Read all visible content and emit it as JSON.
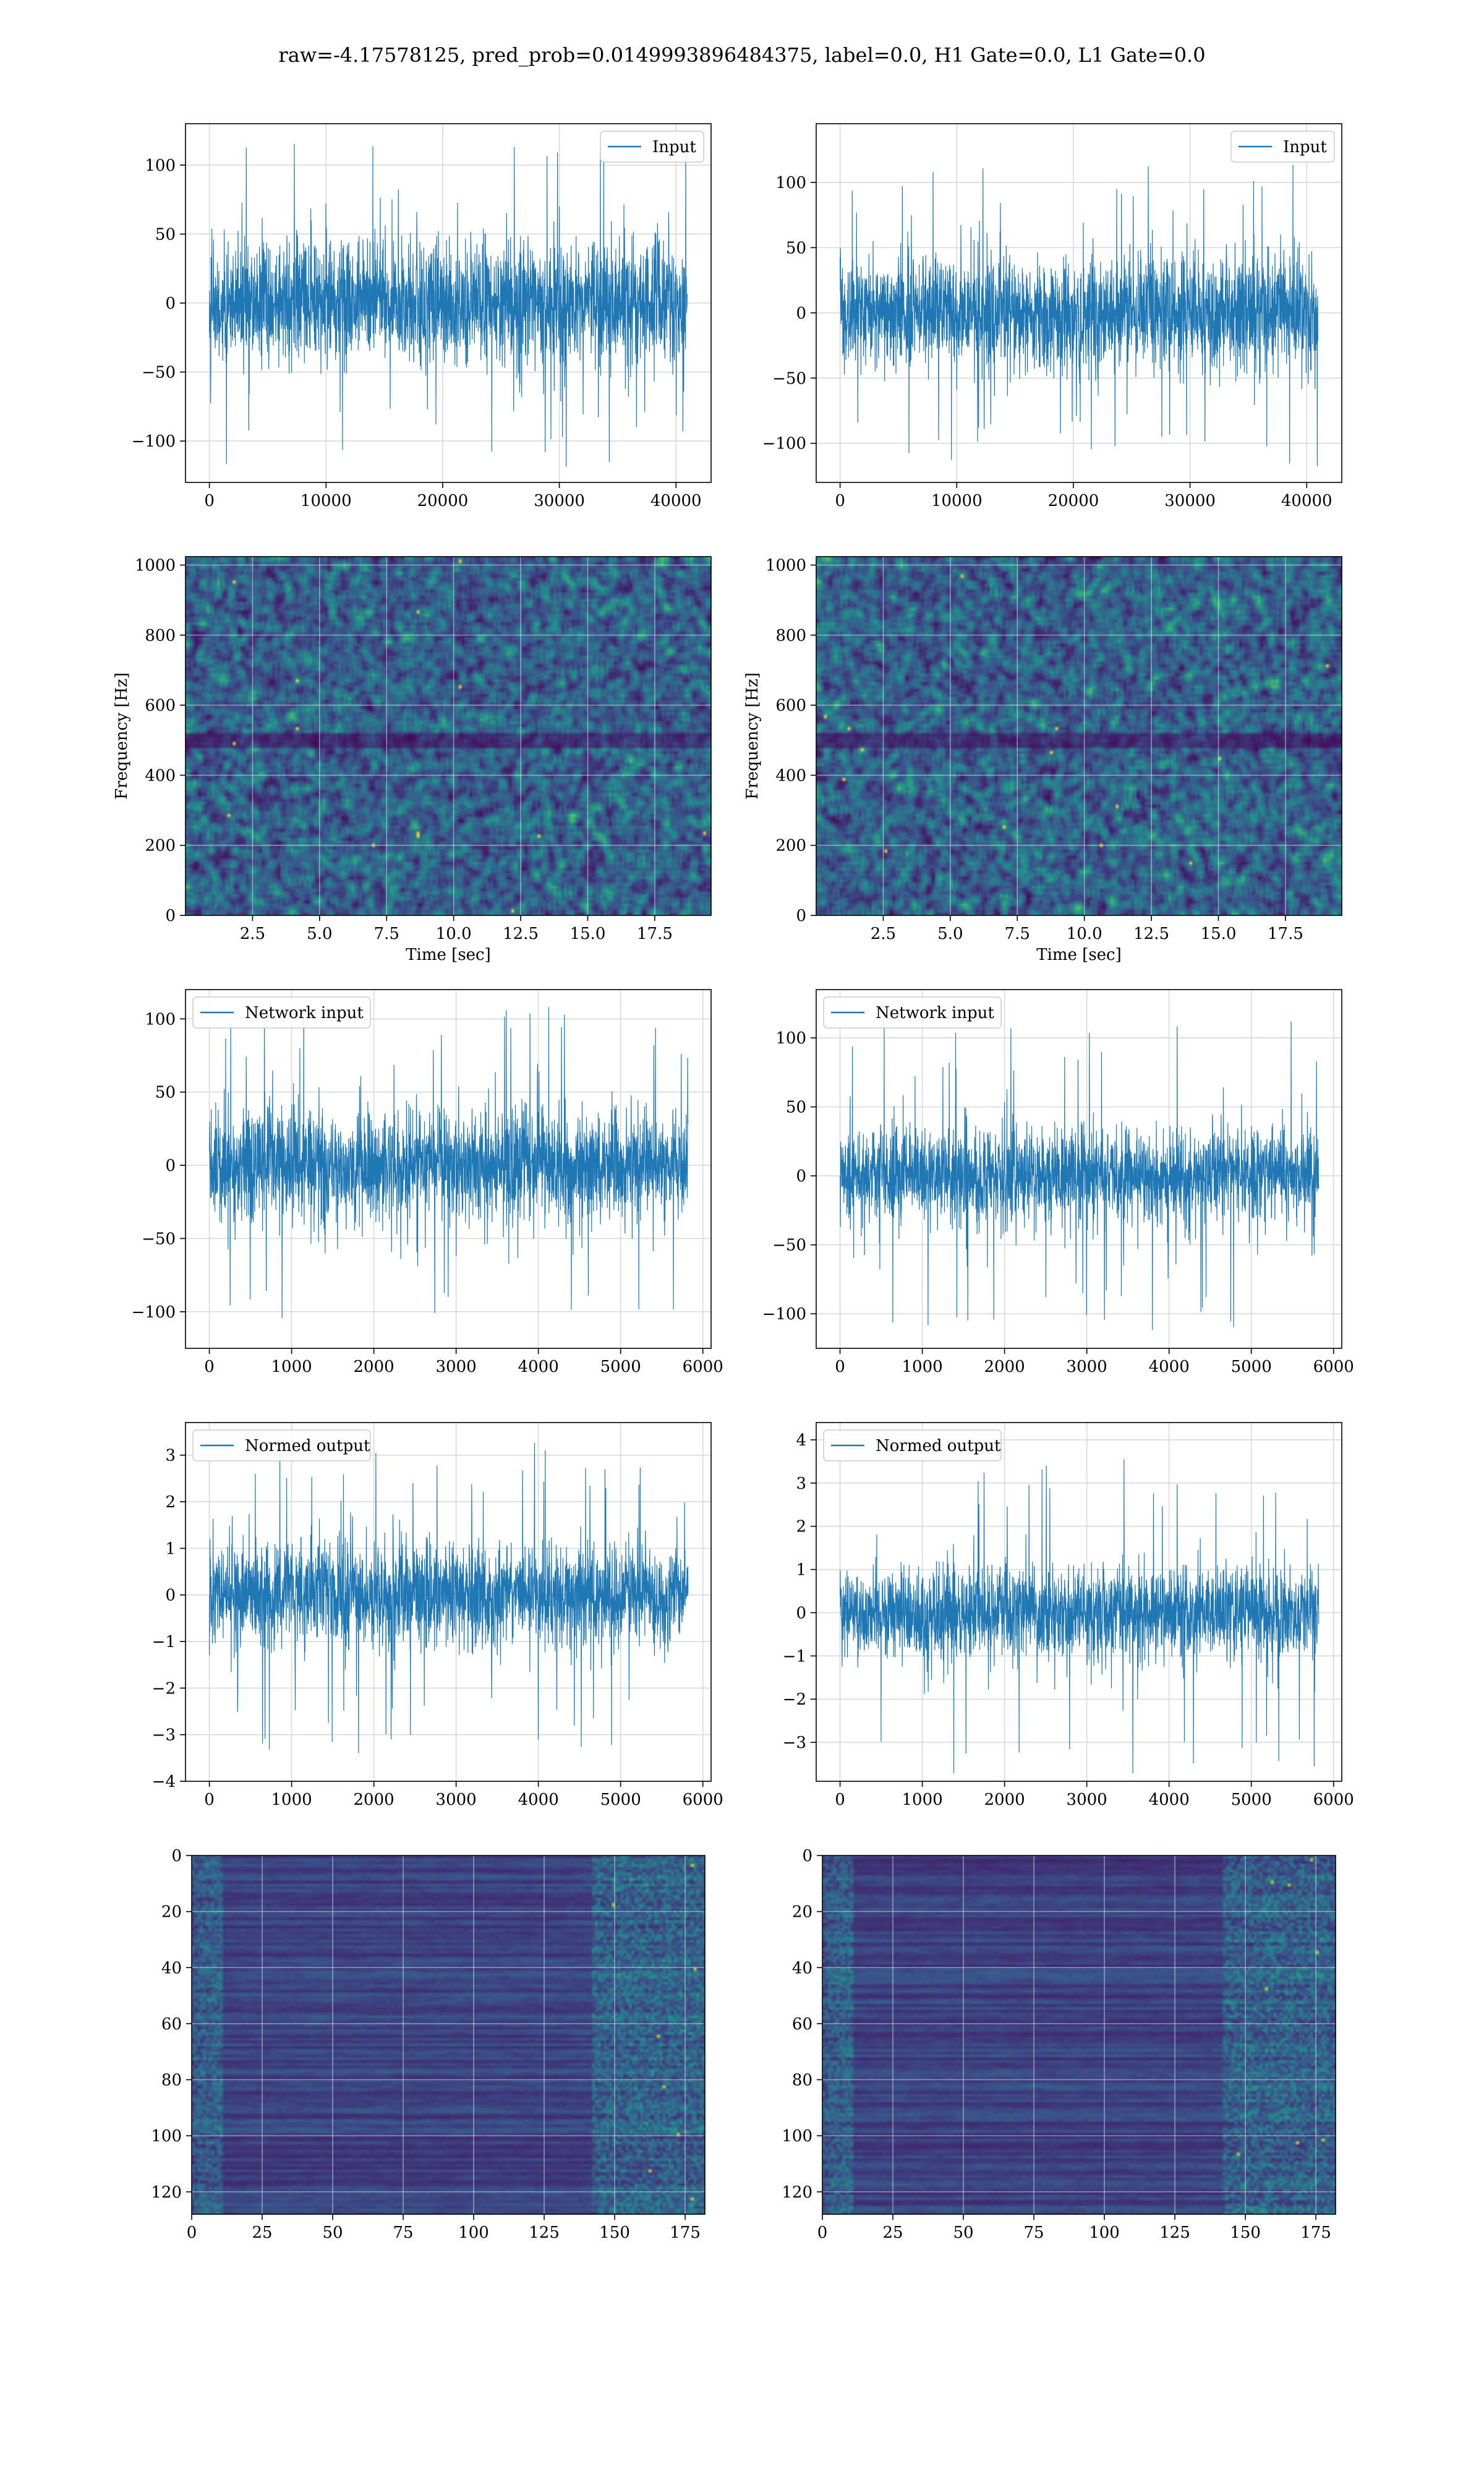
{
  "title": "raw=-4.17578125, pred_prob=0.0149993896484375, label=0.0, H1 Gate=0.0, L1 Gate=0.0",
  "colors": {
    "line": "#1f77b4",
    "grid": "#d9d9d9",
    "viridis": [
      "#440154",
      "#3b528b",
      "#21918c",
      "#5ec962",
      "#fde725"
    ]
  },
  "chart_data": [
    {
      "id": "input-left",
      "type": "line",
      "signal": "noise",
      "series": [
        {
          "name": "Input"
        }
      ],
      "legend": "top-right",
      "xlim": [
        -2048,
        43008
      ],
      "ylim": [
        -130,
        130
      ],
      "xticks": [
        0,
        10000,
        20000,
        30000,
        40000
      ],
      "yticks": [
        -100,
        -50,
        0,
        50,
        100
      ],
      "xtick_labels": [
        "0",
        "10000",
        "20000",
        "30000",
        "40000"
      ],
      "ytick_labels": [
        "−100",
        "−50",
        "0",
        "50",
        "100"
      ],
      "signal_x": [
        0,
        40960
      ],
      "typical_amplitude": 62,
      "peak_amplitude": 120,
      "grid": true,
      "xlabel": "",
      "ylabel": ""
    },
    {
      "id": "input-right",
      "type": "line",
      "signal": "noise",
      "series": [
        {
          "name": "Input"
        }
      ],
      "legend": "top-right",
      "xlim": [
        -2048,
        43008
      ],
      "ylim": [
        -130,
        145
      ],
      "xticks": [
        0,
        10000,
        20000,
        30000,
        40000
      ],
      "yticks": [
        -100,
        -50,
        0,
        50,
        100
      ],
      "xtick_labels": [
        "0",
        "10000",
        "20000",
        "30000",
        "40000"
      ],
      "ytick_labels": [
        "−100",
        "−50",
        "0",
        "50",
        "100"
      ],
      "signal_x": [
        0,
        40960
      ],
      "typical_amplitude": 62,
      "peak_amplitude": 118,
      "grid": true,
      "xlabel": "",
      "ylabel": ""
    },
    {
      "id": "spectrogram-left",
      "type": "heatmap",
      "colormap": "viridis",
      "noise_style": "spectrogram",
      "xlim": [
        0,
        19.6
      ],
      "ylim": [
        0,
        1024
      ],
      "xticks": [
        2.5,
        5.0,
        7.5,
        10.0,
        12.5,
        15.0,
        17.5
      ],
      "yticks": [
        0,
        200,
        400,
        600,
        800,
        1000
      ],
      "xtick_labels": [
        "2.5",
        "5.0",
        "7.5",
        "10.0",
        "12.5",
        "15.0",
        "17.5"
      ],
      "ytick_labels": [
        "0",
        "200",
        "400",
        "600",
        "800",
        "1000"
      ],
      "grid": true,
      "xlabel": "Time [sec]",
      "ylabel": "Frequency [Hz]"
    },
    {
      "id": "spectrogram-right",
      "type": "heatmap",
      "colormap": "viridis",
      "noise_style": "spectrogram",
      "xlim": [
        0,
        19.6
      ],
      "ylim": [
        0,
        1024
      ],
      "xticks": [
        2.5,
        5.0,
        7.5,
        10.0,
        12.5,
        15.0,
        17.5
      ],
      "yticks": [
        0,
        200,
        400,
        600,
        800,
        1000
      ],
      "xtick_labels": [
        "2.5",
        "5.0",
        "7.5",
        "10.0",
        "12.5",
        "15.0",
        "17.5"
      ],
      "ytick_labels": [
        "0",
        "200",
        "400",
        "600",
        "800",
        "1000"
      ],
      "grid": true,
      "xlabel": "Time [sec]",
      "ylabel": "Frequency [Hz]"
    },
    {
      "id": "network-input-left",
      "type": "line",
      "signal": "noise",
      "series": [
        {
          "name": "Network input"
        }
      ],
      "legend": "top-left",
      "xlim": [
        -290,
        6100
      ],
      "ylim": [
        -125,
        120
      ],
      "xticks": [
        0,
        1000,
        2000,
        3000,
        4000,
        5000,
        6000
      ],
      "yticks": [
        -100,
        -50,
        0,
        50,
        100
      ],
      "xtick_labels": [
        "0",
        "1000",
        "2000",
        "3000",
        "4000",
        "5000",
        "6000"
      ],
      "ytick_labels": [
        "−100",
        "−50",
        "0",
        "50",
        "100"
      ],
      "signal_x": [
        0,
        5820
      ],
      "typical_amplitude": 50,
      "peak_amplitude": 108,
      "grid": true,
      "xlabel": "",
      "ylabel": ""
    },
    {
      "id": "network-input-right",
      "type": "line",
      "signal": "noise",
      "series": [
        {
          "name": "Network input"
        }
      ],
      "legend": "top-left",
      "xlim": [
        -290,
        6100
      ],
      "ylim": [
        -125,
        135
      ],
      "xticks": [
        0,
        1000,
        2000,
        3000,
        4000,
        5000,
        6000
      ],
      "yticks": [
        -100,
        -50,
        0,
        50,
        100
      ],
      "xtick_labels": [
        "0",
        "1000",
        "2000",
        "3000",
        "4000",
        "5000",
        "6000"
      ],
      "ytick_labels": [
        "−100",
        "−50",
        "0",
        "50",
        "100"
      ],
      "signal_x": [
        0,
        5820
      ],
      "typical_amplitude": 48,
      "peak_amplitude": 112,
      "grid": true,
      "xlabel": "",
      "ylabel": ""
    },
    {
      "id": "normed-output-left",
      "type": "line",
      "signal": "noise",
      "series": [
        {
          "name": "Normed output"
        }
      ],
      "legend": "top-left",
      "xlim": [
        -290,
        6100
      ],
      "ylim": [
        -4.0,
        3.7
      ],
      "xticks": [
        0,
        1000,
        2000,
        3000,
        4000,
        5000,
        6000
      ],
      "yticks": [
        -4,
        -3,
        -2,
        -1,
        0,
        1,
        2,
        3
      ],
      "xtick_labels": [
        "0",
        "1000",
        "2000",
        "3000",
        "4000",
        "5000",
        "6000"
      ],
      "ytick_labels": [
        "−4",
        "−3",
        "−2",
        "−1",
        "0",
        "1",
        "2",
        "3"
      ],
      "signal_x": [
        0,
        5820
      ],
      "typical_amplitude": 1.5,
      "peak_amplitude": 3.4,
      "grid": true,
      "xlabel": "",
      "ylabel": ""
    },
    {
      "id": "normed-output-right",
      "type": "line",
      "signal": "noise",
      "series": [
        {
          "name": "Normed output"
        }
      ],
      "legend": "top-left",
      "xlim": [
        -290,
        6100
      ],
      "ylim": [
        -3.9,
        4.4
      ],
      "xticks": [
        0,
        1000,
        2000,
        3000,
        4000,
        5000,
        6000
      ],
      "yticks": [
        -3,
        -2,
        -1,
        0,
        1,
        2,
        3,
        4
      ],
      "xtick_labels": [
        "0",
        "1000",
        "2000",
        "3000",
        "4000",
        "5000",
        "6000"
      ],
      "ytick_labels": [
        "−3",
        "−2",
        "−1",
        "0",
        "1",
        "2",
        "3",
        "4"
      ],
      "signal_x": [
        0,
        5820
      ],
      "typical_amplitude": 1.5,
      "peak_amplitude": 3.8,
      "grid": true,
      "xlabel": "",
      "ylabel": ""
    },
    {
      "id": "feature-map-left",
      "type": "heatmap",
      "colormap": "viridis",
      "noise_style": "featuremap",
      "y_inverted": true,
      "xlim": [
        0,
        182
      ],
      "ylim": [
        128,
        0
      ],
      "xticks": [
        0,
        25,
        50,
        75,
        100,
        125,
        150,
        175
      ],
      "yticks": [
        0,
        20,
        40,
        60,
        80,
        100,
        120
      ],
      "xtick_labels": [
        "0",
        "25",
        "50",
        "75",
        "100",
        "125",
        "150",
        "175"
      ],
      "ytick_labels": [
        "0",
        "20",
        "40",
        "60",
        "80",
        "100",
        "120"
      ],
      "grid": true,
      "xlabel": "",
      "ylabel": ""
    },
    {
      "id": "feature-map-right",
      "type": "heatmap",
      "colormap": "viridis",
      "noise_style": "featuremap",
      "y_inverted": true,
      "xlim": [
        0,
        182
      ],
      "ylim": [
        128,
        0
      ],
      "xticks": [
        0,
        25,
        50,
        75,
        100,
        125,
        150,
        175
      ],
      "yticks": [
        0,
        20,
        40,
        60,
        80,
        100,
        120
      ],
      "xtick_labels": [
        "0",
        "25",
        "50",
        "75",
        "100",
        "125",
        "150",
        "175"
      ],
      "ytick_labels": [
        "0",
        "20",
        "40",
        "60",
        "80",
        "100",
        "120"
      ],
      "grid": true,
      "xlabel": "",
      "ylabel": ""
    }
  ]
}
